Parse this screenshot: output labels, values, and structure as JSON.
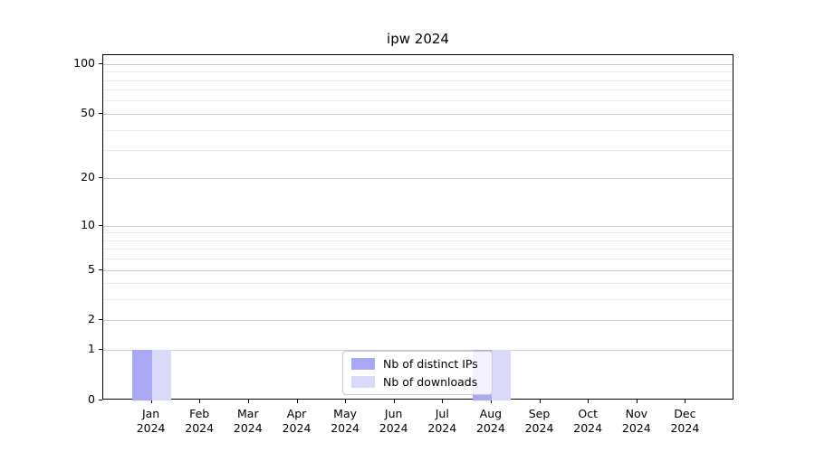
{
  "chart_data": {
    "type": "bar",
    "title": "ipw 2024",
    "categories": [
      "Jan 2024",
      "Feb 2024",
      "Mar 2024",
      "Apr 2024",
      "May 2024",
      "Jun 2024",
      "Jul 2024",
      "Aug 2024",
      "Sep 2024",
      "Oct 2024",
      "Nov 2024",
      "Dec 2024"
    ],
    "series": [
      {
        "name": "Nb of distinct IPs",
        "color": "#a8a8f4",
        "values": [
          1,
          0,
          0,
          0,
          0,
          0,
          0,
          1,
          0,
          0,
          0,
          0
        ]
      },
      {
        "name": "Nb of downloads",
        "color": "#d9d9f9",
        "values": [
          1,
          0,
          0,
          0,
          0,
          0,
          0,
          1,
          0,
          0,
          0,
          0
        ]
      }
    ],
    "yscale": "log1p",
    "ylim": [
      0,
      113
    ],
    "yticks": [
      0,
      1,
      2,
      5,
      10,
      20,
      50,
      100
    ],
    "minor_yticks": [
      3,
      4,
      6,
      7,
      8,
      9,
      30,
      40,
      60,
      70,
      80,
      90
    ],
    "grid": true,
    "legend_position": "lower center",
    "bar_width": 0.4,
    "colors": {
      "axis": "#000000",
      "grid_major": "#cdcdcd",
      "grid_minor": "#ececec",
      "background": "#ffffff"
    }
  }
}
